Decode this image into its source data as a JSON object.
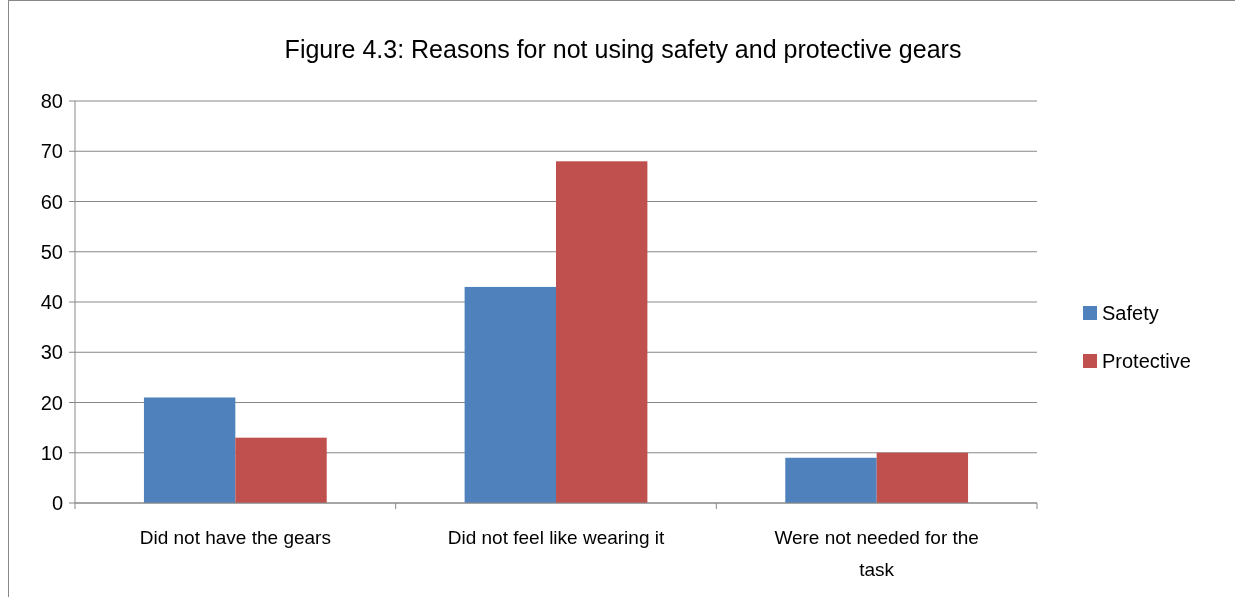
{
  "chart_data": {
    "type": "bar",
    "title": "Figure 4.3: Reasons for not using safety and protective gears",
    "categories": [
      "Did not have the gears",
      "Did not feel like wearing it",
      "Were not needed for the task"
    ],
    "series": [
      {
        "name": "Safety",
        "color": "#4f81bd",
        "values": [
          21,
          43,
          9
        ]
      },
      {
        "name": "Protective",
        "color": "#c0504d",
        "values": [
          13,
          68,
          10
        ]
      }
    ],
    "ylim": [
      0,
      80
    ],
    "yticks": [
      0,
      10,
      20,
      30,
      40,
      50,
      60,
      70,
      80
    ],
    "grid": "y",
    "legend": "right"
  }
}
